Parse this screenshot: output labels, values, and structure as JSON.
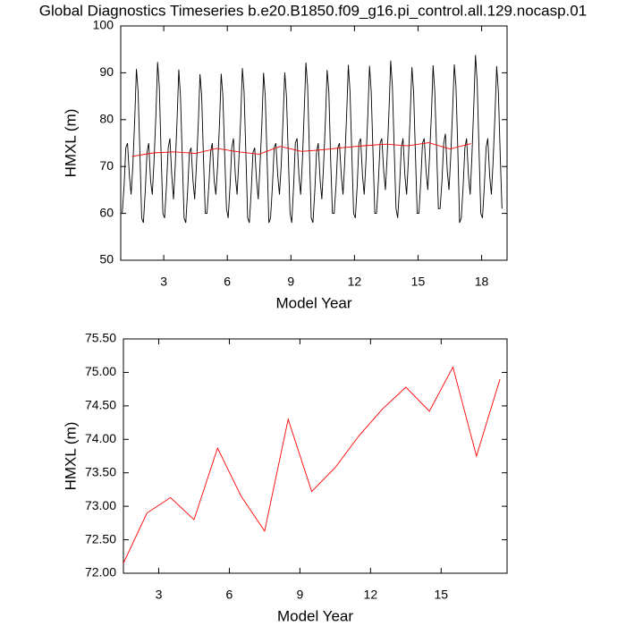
{
  "chart_data": [
    {
      "type": "line",
      "title": "Global Diagnostics Timeseries b.e20.B1850.f09_g16.pi_control.all.129.nocasp.01",
      "xlabel": "Model Year",
      "ylabel": "HMXL (m)",
      "xlim": [
        0.97,
        19.2
      ],
      "xticks": [
        3,
        6,
        9,
        12,
        15,
        18
      ],
      "ylim": [
        50,
        100
      ],
      "yticks": [
        50,
        60,
        70,
        80,
        90,
        100
      ],
      "series": [
        {
          "color": "#000000",
          "x": [
            1.04,
            1.13,
            1.21,
            1.29,
            1.38,
            1.46,
            1.54,
            1.63,
            1.71,
            1.79,
            1.88,
            1.96,
            2.04,
            2.13,
            2.21,
            2.29,
            2.38,
            2.46,
            2.54,
            2.63,
            2.71,
            2.79,
            2.88,
            2.96,
            3.04,
            3.13,
            3.21,
            3.29,
            3.38,
            3.46,
            3.54,
            3.63,
            3.71,
            3.79,
            3.88,
            3.96,
            4.04,
            4.13,
            4.21,
            4.29,
            4.38,
            4.46,
            4.54,
            4.63,
            4.71,
            4.79,
            4.88,
            4.96,
            5.04,
            5.13,
            5.21,
            5.29,
            5.38,
            5.46,
            5.54,
            5.63,
            5.71,
            5.79,
            5.88,
            5.96,
            6.04,
            6.13,
            6.21,
            6.29,
            6.38,
            6.46,
            6.54,
            6.63,
            6.71,
            6.79,
            6.88,
            6.96,
            7.04,
            7.13,
            7.21,
            7.29,
            7.38,
            7.46,
            7.54,
            7.63,
            7.71,
            7.79,
            7.88,
            7.96,
            8.04,
            8.13,
            8.21,
            8.29,
            8.38,
            8.46,
            8.54,
            8.63,
            8.71,
            8.79,
            8.88,
            8.96,
            9.04,
            9.13,
            9.21,
            9.29,
            9.38,
            9.46,
            9.54,
            9.63,
            9.71,
            9.79,
            9.88,
            9.96,
            10.04,
            10.13,
            10.21,
            10.29,
            10.38,
            10.46,
            10.54,
            10.63,
            10.71,
            10.79,
            10.88,
            10.96,
            11.04,
            11.13,
            11.21,
            11.29,
            11.38,
            11.46,
            11.54,
            11.63,
            11.71,
            11.79,
            11.88,
            11.96,
            12.04,
            12.13,
            12.21,
            12.29,
            12.38,
            12.46,
            12.54,
            12.63,
            12.71,
            12.79,
            12.88,
            12.96,
            13.04,
            13.13,
            13.21,
            13.29,
            13.38,
            13.46,
            13.54,
            13.63,
            13.71,
            13.79,
            13.88,
            13.96,
            14.04,
            14.13,
            14.21,
            14.29,
            14.38,
            14.46,
            14.54,
            14.63,
            14.71,
            14.79,
            14.88,
            14.96,
            15.04,
            15.13,
            15.21,
            15.29,
            15.38,
            15.46,
            15.54,
            15.63,
            15.71,
            15.79,
            15.88,
            15.96,
            16.04,
            16.13,
            16.21,
            16.29,
            16.38,
            16.46,
            16.54,
            16.63,
            16.71,
            16.79,
            16.88,
            16.96,
            17.04,
            17.13,
            17.21,
            17.29,
            17.38,
            17.46,
            17.54,
            17.63,
            17.71,
            17.79,
            17.88,
            17.96,
            18.04,
            18.13,
            18.21,
            18.29,
            18.38,
            18.46,
            18.54,
            18.63,
            18.71,
            18.79,
            18.88,
            18.96
          ],
          "values": [
            60,
            66,
            74,
            75,
            68,
            64,
            70,
            80,
            90.8,
            86,
            72,
            59,
            58,
            65,
            73,
            75,
            67,
            64,
            71,
            81,
            92.3,
            87,
            72,
            60,
            59,
            66,
            74,
            76,
            68,
            63,
            70,
            80,
            90.7,
            85,
            71,
            59,
            58,
            65,
            73,
            74,
            67,
            63,
            70,
            79,
            89.7,
            85,
            71,
            60,
            60,
            66,
            73,
            75,
            67,
            64,
            70,
            79,
            89.8,
            85,
            72,
            61,
            59,
            66,
            74,
            76,
            68,
            64,
            71,
            80,
            91,
            86,
            72,
            59,
            58,
            65,
            73,
            74,
            67,
            63,
            70,
            79,
            90,
            85,
            71,
            58,
            59,
            66,
            74,
            75,
            68,
            64,
            70,
            80,
            90.1,
            85,
            72,
            60,
            58,
            66,
            75,
            76,
            68,
            64,
            71,
            82,
            92.2,
            87,
            72,
            59,
            58,
            65,
            73,
            75,
            67,
            63,
            70,
            80,
            90.6,
            86,
            71,
            60,
            60,
            66,
            74,
            75,
            68,
            64,
            71,
            81,
            91.7,
            86,
            72,
            60,
            59,
            66,
            75,
            76,
            68,
            64,
            71,
            81,
            91.5,
            86,
            72,
            60,
            60,
            67,
            75,
            76,
            69,
            65,
            72,
            82,
            92.6,
            87,
            73,
            61,
            59,
            66,
            74,
            76,
            68,
            64,
            71,
            81,
            91.2,
            86,
            72,
            60,
            60,
            67,
            75,
            76,
            69,
            65,
            72,
            81,
            91.6,
            86,
            73,
            61,
            61,
            67,
            75,
            77,
            69,
            65,
            72,
            82,
            91.8,
            87,
            73,
            58,
            59,
            66,
            74,
            76,
            68,
            64,
            72,
            83,
            93.8,
            88,
            73,
            60,
            59,
            66,
            74,
            76,
            68,
            64,
            71,
            81,
            91.4,
            86,
            72,
            61
          ]
        },
        {
          "color": "#ff0000",
          "x": [
            1.5,
            2.5,
            3.5,
            4.5,
            5.5,
            6.5,
            7.5,
            8.5,
            9.5,
            10.5,
            11.5,
            12.5,
            13.5,
            14.5,
            15.5,
            16.5,
            17.5
          ],
          "values": [
            72.15,
            72.9,
            73.13,
            72.8,
            73.87,
            73.15,
            72.63,
            74.3,
            73.22,
            73.58,
            74.05,
            74.45,
            74.78,
            74.42,
            75.08,
            73.75,
            74.9
          ]
        }
      ]
    },
    {
      "type": "line",
      "xlabel": "Model Year",
      "ylabel": "HMXL (m)",
      "xlim": [
        1.5,
        17.8
      ],
      "xticks": [
        3,
        6,
        9,
        12,
        15
      ],
      "ylim": [
        72,
        75.5
      ],
      "yticks": [
        {
          "value": 72,
          "label": "72.00"
        },
        {
          "value": 72.5,
          "label": "72.50"
        },
        {
          "value": 73,
          "label": "73.00"
        },
        {
          "value": 73.5,
          "label": "73.50"
        },
        {
          "value": 74,
          "label": "74.00"
        },
        {
          "value": 74.5,
          "label": "74.50"
        },
        {
          "value": 75,
          "label": "75.00"
        },
        {
          "value": 75.5,
          "label": "75.50"
        }
      ],
      "series": [
        {
          "color": "#ff0000",
          "x": [
            1.5,
            2.5,
            3.5,
            4.5,
            5.5,
            6.5,
            7.5,
            8.5,
            9.5,
            10.5,
            11.5,
            12.5,
            13.5,
            14.5,
            15.5,
            16.5,
            17.5
          ],
          "values": [
            72.15,
            72.9,
            73.13,
            72.8,
            73.87,
            73.15,
            72.63,
            74.3,
            73.22,
            73.58,
            74.05,
            74.45,
            74.78,
            74.42,
            75.08,
            73.75,
            74.9
          ]
        }
      ]
    }
  ]
}
